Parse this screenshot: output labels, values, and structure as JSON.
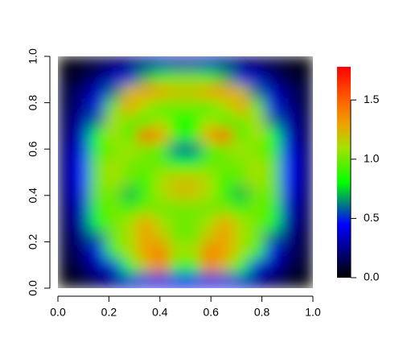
{
  "chart_data": {
    "type": "heatmap",
    "x": [
      0.031,
      0.094,
      0.156,
      0.219,
      0.281,
      0.344,
      0.406,
      0.469,
      0.531,
      0.594,
      0.656,
      0.719,
      0.781,
      0.844,
      0.906,
      0.969
    ],
    "y": [
      0.969,
      0.906,
      0.844,
      0.781,
      0.719,
      0.656,
      0.594,
      0.531,
      0.469,
      0.406,
      0.344,
      0.281,
      0.219,
      0.156,
      0.094,
      0.031
    ],
    "z": [
      [
        0,
        0.05,
        0.1,
        0.15,
        0.2,
        0.25,
        0.3,
        0.3,
        0.3,
        0.3,
        0.25,
        0.2,
        0.15,
        0.1,
        0.05,
        0
      ],
      [
        0.05,
        0.1,
        0.2,
        0.35,
        0.5,
        0.7,
        0.9,
        1.0,
        1.0,
        0.9,
        0.7,
        0.5,
        0.35,
        0.2,
        0.1,
        0.05
      ],
      [
        0.1,
        0.2,
        0.35,
        0.6,
        1.2,
        1.3,
        1.3,
        1.2,
        1.2,
        1.3,
        1.3,
        1.2,
        0.6,
        0.35,
        0.2,
        0.1
      ],
      [
        0.1,
        0.25,
        0.5,
        1.0,
        1.3,
        1.1,
        0.9,
        1.0,
        1.0,
        0.9,
        1.1,
        1.3,
        1.0,
        0.5,
        0.25,
        0.1
      ],
      [
        0.15,
        0.3,
        0.6,
        1.1,
        1.0,
        0.9,
        1.1,
        0.8,
        0.8,
        1.1,
        0.9,
        1.0,
        1.1,
        0.6,
        0.3,
        0.15
      ],
      [
        0.15,
        0.35,
        0.8,
        1.1,
        0.9,
        1.6,
        1.3,
        0.9,
        0.9,
        1.3,
        1.6,
        0.9,
        1.1,
        0.8,
        0.35,
        0.15
      ],
      [
        0.2,
        0.4,
        0.9,
        1.0,
        1.1,
        1.0,
        0.9,
        0.6,
        0.6,
        0.9,
        1.0,
        1.1,
        1.0,
        0.9,
        0.4,
        0.2
      ],
      [
        0.2,
        0.45,
        1.0,
        1.1,
        1.0,
        1.0,
        1.0,
        0.8,
        0.8,
        1.0,
        1.0,
        1.0,
        1.1,
        1.0,
        0.45,
        0.2
      ],
      [
        0.2,
        0.45,
        1.0,
        1.1,
        1.0,
        0.9,
        1.1,
        1.2,
        1.2,
        1.1,
        0.9,
        1.0,
        1.1,
        1.0,
        0.45,
        0.2
      ],
      [
        0.2,
        0.4,
        1.0,
        1.0,
        0.7,
        0.9,
        1.1,
        1.2,
        1.2,
        1.1,
        0.9,
        0.7,
        1.0,
        1.0,
        0.4,
        0.2
      ],
      [
        0.15,
        0.35,
        0.9,
        1.0,
        0.9,
        1.0,
        1.0,
        1.0,
        1.0,
        1.0,
        1.0,
        0.9,
        1.0,
        0.9,
        0.35,
        0.15
      ],
      [
        0.15,
        0.3,
        0.8,
        1.0,
        1.1,
        1.3,
        1.1,
        1.0,
        1.0,
        1.1,
        1.3,
        1.1,
        1.0,
        0.8,
        0.3,
        0.15
      ],
      [
        0.1,
        0.25,
        0.6,
        1.0,
        1.1,
        1.3,
        1.2,
        1.0,
        1.0,
        1.2,
        1.3,
        1.1,
        1.0,
        0.6,
        0.25,
        0.1
      ],
      [
        0.1,
        0.2,
        0.4,
        0.9,
        1.1,
        1.3,
        1.4,
        1.1,
        1.1,
        1.4,
        1.3,
        1.1,
        0.9,
        0.4,
        0.2,
        0.1
      ],
      [
        0.05,
        0.15,
        0.3,
        0.5,
        0.8,
        1.2,
        1.4,
        0.9,
        0.9,
        1.4,
        1.2,
        0.8,
        0.5,
        0.3,
        0.15,
        0.05
      ],
      [
        0,
        0.05,
        0.15,
        0.25,
        0.35,
        0.5,
        0.5,
        0.4,
        0.4,
        0.5,
        0.5,
        0.35,
        0.25,
        0.15,
        0.05,
        0
      ]
    ],
    "xlim": [
      0,
      1
    ],
    "ylim": [
      0,
      1
    ],
    "zlim": [
      0,
      1.78
    ],
    "xticks": [
      {
        "value": 0,
        "label": "0.0"
      },
      {
        "value": 0.2,
        "label": "0.2"
      },
      {
        "value": 0.4,
        "label": "0.4"
      },
      {
        "value": 0.6,
        "label": "0.6"
      },
      {
        "value": 0.8,
        "label": "0.8"
      },
      {
        "value": 1,
        "label": "1.0"
      }
    ],
    "yticks": [
      {
        "value": 0,
        "label": "0.0"
      },
      {
        "value": 0.2,
        "label": "0.2"
      },
      {
        "value": 0.4,
        "label": "0.4"
      },
      {
        "value": 0.6,
        "label": "0.6"
      },
      {
        "value": 0.8,
        "label": "0.8"
      },
      {
        "value": 1,
        "label": "1.0"
      }
    ],
    "zticks": [
      {
        "value": 0,
        "label": "0.0"
      },
      {
        "value": 0.5,
        "label": "0.5"
      },
      {
        "value": 1,
        "label": "1.0"
      },
      {
        "value": 1.5,
        "label": "1.5"
      }
    ],
    "colorscale": [
      {
        "value": 0,
        "color": "#000000"
      },
      {
        "value": 0.45,
        "color": "#0000ff"
      },
      {
        "value": 0.8,
        "color": "#00ff00"
      },
      {
        "value": 1.1,
        "color": "#a8e000"
      },
      {
        "value": 1.3,
        "color": "#f0a000"
      },
      {
        "value": 1.5,
        "color": "#ff6000"
      },
      {
        "value": 1.78,
        "color": "#ff0000"
      }
    ]
  }
}
